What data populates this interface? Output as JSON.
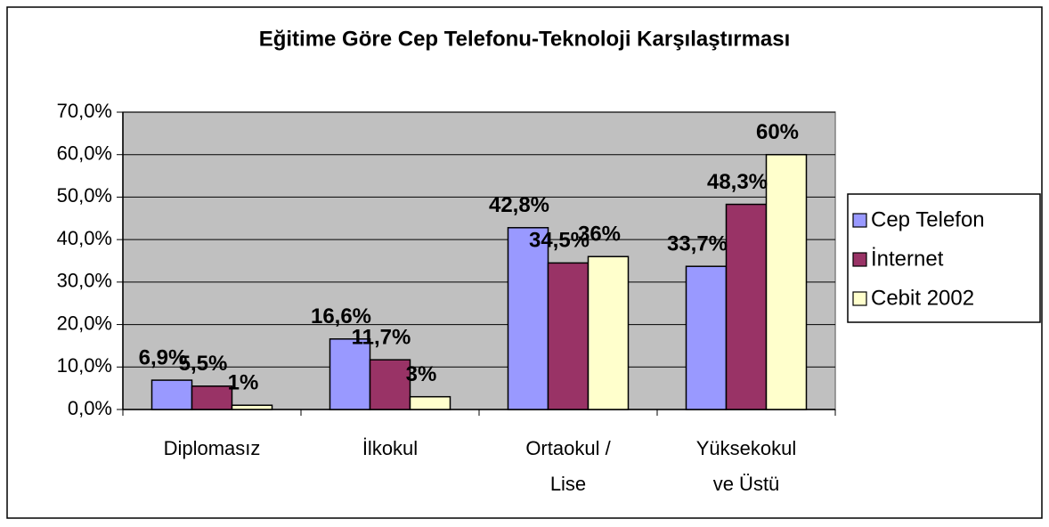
{
  "chart_data": {
    "type": "bar",
    "title": "Eğitime Göre Cep Telefonu-Teknoloji Karşılaştırması",
    "categories": [
      "Diplomasız",
      "İlkokul",
      "Ortaokul /\nLise",
      "Yüksekokul\nve Üstü"
    ],
    "series": [
      {
        "name": "Cep Telefon",
        "color": "#9999ff",
        "values": [
          6.9,
          16.6,
          42.8,
          33.7
        ],
        "value_labels": [
          "6,9%",
          "16,6%",
          "42,8%",
          "33,7%"
        ]
      },
      {
        "name": "İnternet",
        "color": "#993366",
        "values": [
          5.5,
          11.7,
          34.5,
          48.3
        ],
        "value_labels": [
          "5,5%",
          "11,7%",
          "34,5%",
          "48,3%"
        ]
      },
      {
        "name": "Cebit 2002",
        "color": "#ffffcc",
        "values": [
          1,
          3,
          36,
          60
        ],
        "value_labels": [
          "1%",
          "3%",
          "36%",
          "60%"
        ]
      }
    ],
    "ylim": [
      0,
      70
    ],
    "yticks": [
      {
        "value": 0,
        "label": "0,0%"
      },
      {
        "value": 10,
        "label": "10,0%"
      },
      {
        "value": 20,
        "label": "20,0%"
      },
      {
        "value": 30,
        "label": "30,0%"
      },
      {
        "value": 40,
        "label": "40,0%"
      },
      {
        "value": 50,
        "label": "50,0%"
      },
      {
        "value": 60,
        "label": "60,0%"
      },
      {
        "value": 70,
        "label": "70,0%"
      }
    ],
    "grid": true,
    "legend": "right",
    "plot_background": "#c0c0c0"
  }
}
